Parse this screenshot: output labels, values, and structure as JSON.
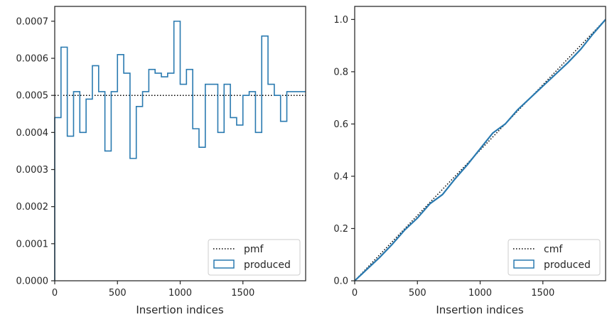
{
  "chart_data": [
    {
      "type": "step",
      "panel": "left",
      "xlabel": "Insertion indices",
      "ylabel": "",
      "xlim": [
        0,
        2000
      ],
      "ylim": [
        0,
        0.00074
      ],
      "xticks": [
        0,
        500,
        1000,
        1500
      ],
      "xtick_labels": [
        "0",
        "500",
        "1000",
        "1500"
      ],
      "yticks": [
        0,
        0.0001,
        0.0002,
        0.0003,
        0.0004,
        0.0005,
        0.0006,
        0.0007
      ],
      "ytick_labels": [
        "0.0000",
        "0.0001",
        "0.0002",
        "0.0003",
        "0.0004",
        "0.0005",
        "0.0006",
        "0.0007"
      ],
      "legend_position": "lower right",
      "series": [
        {
          "name": "pmf",
          "style": "dotted",
          "color": "#000000",
          "x": [
            0,
            2000
          ],
          "y": [
            0.0005,
            0.0005
          ]
        },
        {
          "name": "produced",
          "style": "histogram-step",
          "color": "#2a7ab0",
          "bin_width": 50,
          "bin_starts": [
            0,
            50,
            100,
            150,
            200,
            250,
            300,
            350,
            400,
            450,
            500,
            550,
            600,
            650,
            700,
            750,
            800,
            850,
            900,
            950,
            1000,
            1050,
            1100,
            1150,
            1200,
            1250,
            1300,
            1350,
            1400,
            1450,
            1500,
            1550,
            1600,
            1650,
            1700,
            1750,
            1800,
            1850,
            1900,
            1950
          ],
          "values": [
            0.00044,
            0.00063,
            0.00039,
            0.00051,
            0.0004,
            0.00049,
            0.00058,
            0.00051,
            0.00035,
            0.00051,
            0.00061,
            0.00056,
            0.00033,
            0.00047,
            0.00051,
            0.00057,
            0.00056,
            0.00055,
            0.00056,
            0.0007,
            0.00053,
            0.00057,
            0.00041,
            0.00036,
            0.00053,
            0.00053,
            0.0004,
            0.00053,
            0.00044,
            0.00042,
            0.0005,
            0.00051,
            0.0004,
            0.00066,
            0.00053,
            0.0005,
            0.00043,
            0.00051,
            0.00051,
            0.00051
          ]
        }
      ]
    },
    {
      "type": "step",
      "panel": "right",
      "xlabel": "Insertion indices",
      "ylabel": "",
      "xlim": [
        0,
        2000
      ],
      "ylim": [
        0,
        1.05
      ],
      "xticks": [
        0,
        500,
        1000,
        1500
      ],
      "xtick_labels": [
        "0",
        "500",
        "1000",
        "1500"
      ],
      "yticks": [
        0,
        0.2,
        0.4,
        0.6,
        0.8,
        1.0
      ],
      "ytick_labels": [
        "0.0",
        "0.2",
        "0.4",
        "0.6",
        "0.8",
        "1.0"
      ],
      "legend_position": "lower right",
      "series": [
        {
          "name": "cmf",
          "style": "dotted",
          "color": "#000000",
          "x": [
            0,
            2000
          ],
          "y": [
            0,
            1.0
          ]
        },
        {
          "name": "produced",
          "style": "cumulative-step",
          "color": "#2a7ab0",
          "x": [
            0,
            100,
            200,
            300,
            400,
            500,
            600,
            700,
            800,
            900,
            1000,
            1100,
            1200,
            1300,
            1400,
            1500,
            1600,
            1700,
            1800,
            1900,
            2000
          ],
          "y": [
            0.0,
            0.045,
            0.09,
            0.14,
            0.195,
            0.24,
            0.295,
            0.33,
            0.39,
            0.445,
            0.505,
            0.565,
            0.6,
            0.655,
            0.7,
            0.745,
            0.79,
            0.835,
            0.885,
            0.945,
            1.0
          ]
        }
      ]
    }
  ]
}
